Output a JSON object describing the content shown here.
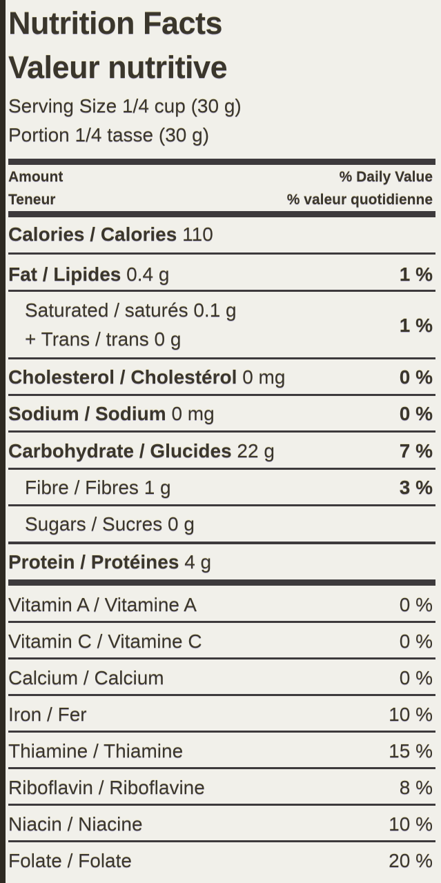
{
  "title_en": "Nutrition Facts",
  "title_fr": "Valeur nutritive",
  "serving_en": "Serving Size 1/4 cup (30 g)",
  "serving_fr": "Portion 1/4 tasse (30 g)",
  "header": {
    "amount_en": "Amount",
    "amount_fr": "Teneur",
    "dv_en": "% Daily Value",
    "dv_fr": "% valeur quotidienne"
  },
  "calories": {
    "label": "Calories / Calories",
    "value": "110"
  },
  "rows": [
    {
      "label": "Fat / Lipides",
      "amount": "0.4 g",
      "dv": "1 %"
    },
    {
      "label": "Saturated / saturés 0.1 g",
      "amount": "",
      "dv": "1 %",
      "line2": "+ Trans / trans 0 g"
    },
    {
      "label": "Cholesterol / Cholestérol",
      "amount": "0 mg",
      "dv": "0 %"
    },
    {
      "label": "Sodium / Sodium",
      "amount": "0 mg",
      "dv": "0 %"
    },
    {
      "label": "Carbohydrate / Glucides",
      "amount": "22 g",
      "dv": "7 %"
    },
    {
      "label": "Fibre / Fibres 1 g",
      "amount": "",
      "dv": "3 %"
    },
    {
      "label": "Sugars / Sucres 0 g",
      "amount": "",
      "dv": ""
    },
    {
      "label": "Protein / Protéines",
      "amount": "4 g",
      "dv": ""
    }
  ],
  "vitamins": [
    {
      "label": "Vitamin A / Vitamine A",
      "dv": "0 %"
    },
    {
      "label": "Vitamin C / Vitamine C",
      "dv": "0 %"
    },
    {
      "label": "Calcium / Calcium",
      "dv": "0 %"
    },
    {
      "label": "Iron / Fer",
      "dv": "10 %"
    },
    {
      "label": "Thiamine / Thiamine",
      "dv": "15 %"
    },
    {
      "label": "Riboflavin / Riboflavine",
      "dv": "8 %"
    },
    {
      "label": "Niacin / Niacine",
      "dv": "10 %"
    },
    {
      "label": "Folate / Folate",
      "dv": "20 %"
    }
  ]
}
